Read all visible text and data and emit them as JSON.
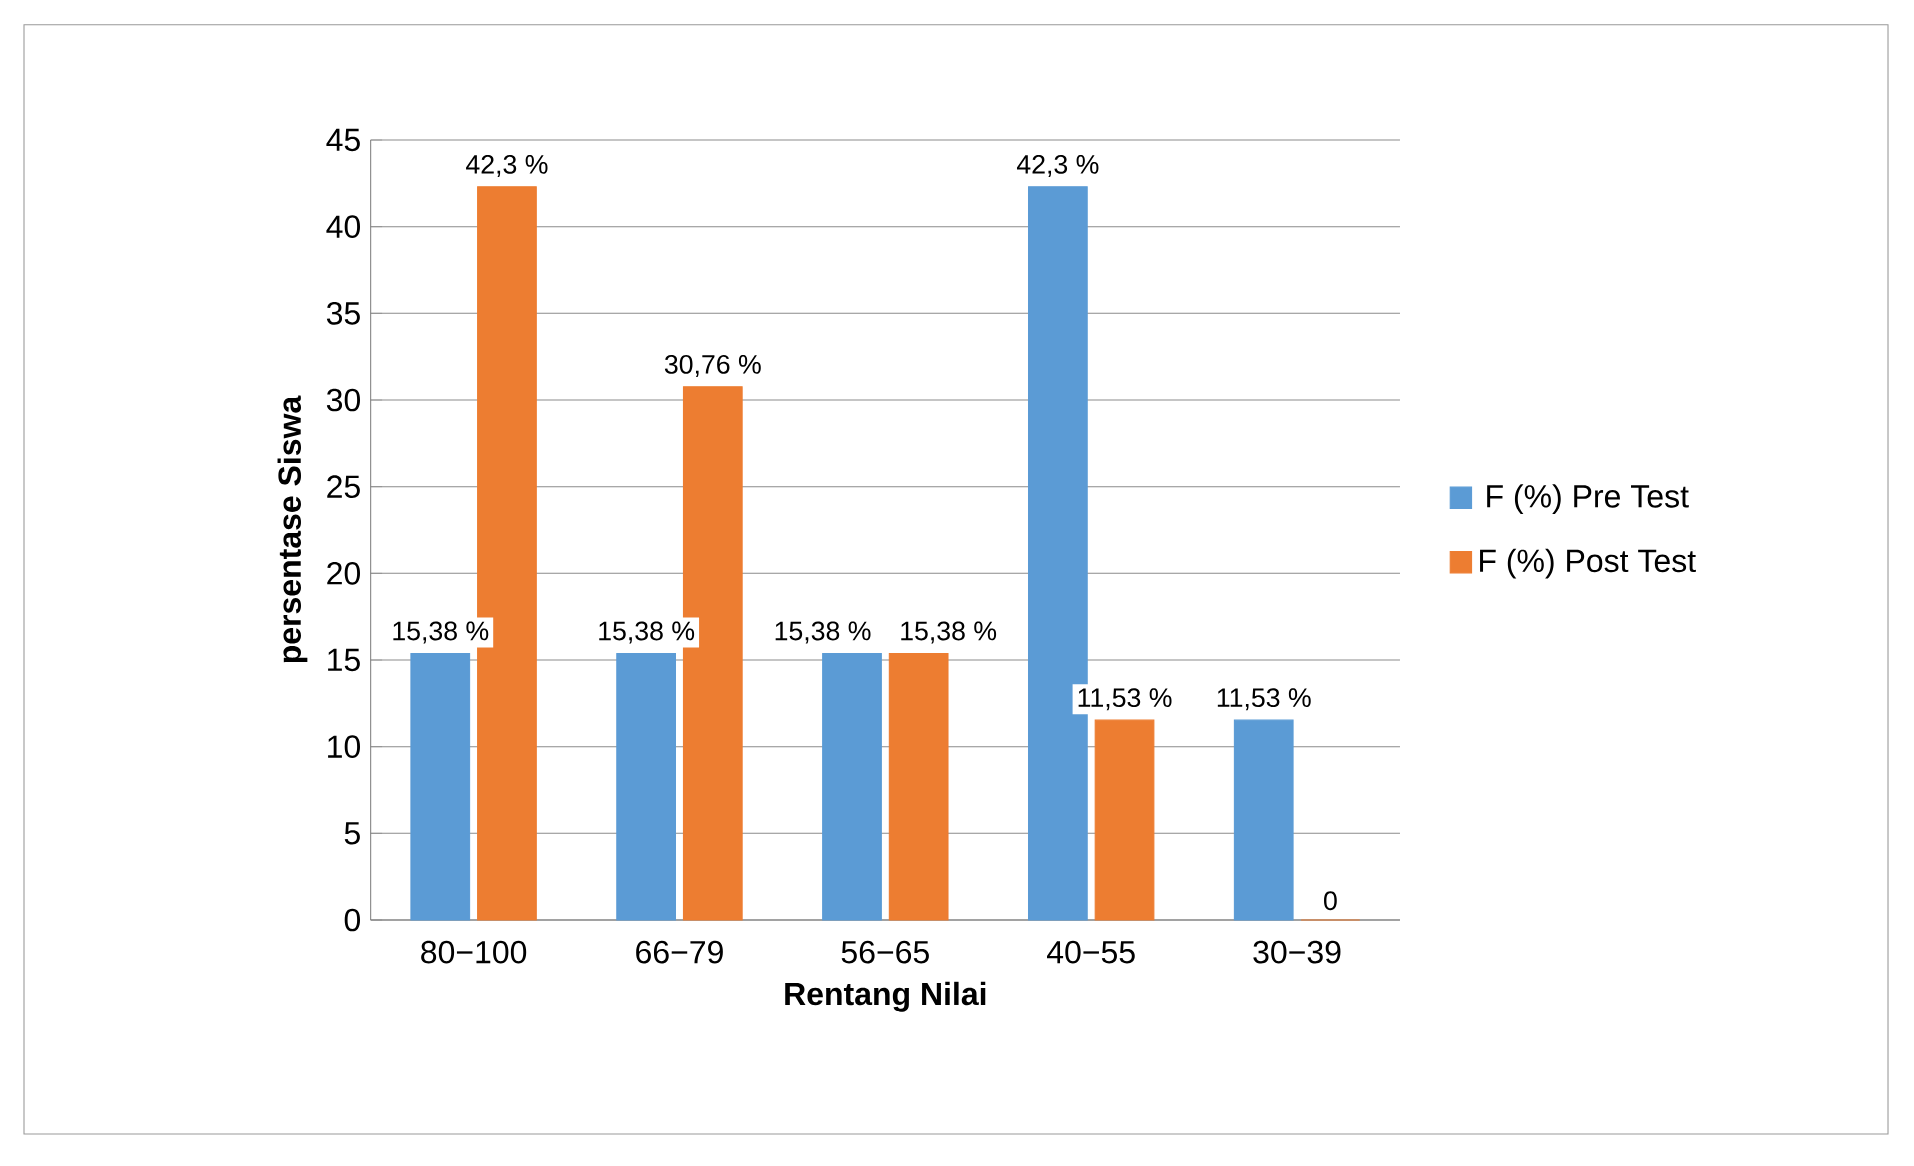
{
  "chart_data": {
    "type": "bar",
    "categories": [
      "80−100",
      "66−79",
      "56−65",
      "40−55",
      "30−39"
    ],
    "series": [
      {
        "name": "F (%) Pre Test",
        "color": "#5b9bd5",
        "values": [
          15.38,
          15.38,
          15.38,
          42.3,
          11.53
        ],
        "value_labels": [
          "15,38 %",
          "15,38 %",
          "15,38 %",
          "42,3 %",
          "11,53 %"
        ]
      },
      {
        "name": "F (%) Post Test",
        "color": "#ed7d31",
        "values": [
          42.3,
          30.76,
          15.38,
          11.53,
          0
        ],
        "value_labels": [
          "42,3 %",
          "30,76 %",
          "15,38 %",
          "11,53 %",
          "0"
        ]
      }
    ],
    "xlabel": "Rentang Nilai",
    "ylabel": "persentase Siswa",
    "ylim": [
      0,
      45
    ],
    "yticks": [
      0,
      5,
      10,
      15,
      20,
      25,
      30,
      35,
      40,
      45
    ],
    "grid": "y",
    "legend": "right"
  }
}
